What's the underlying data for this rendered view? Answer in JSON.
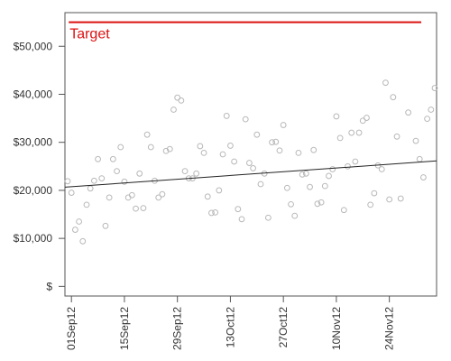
{
  "chart_data": {
    "type": "scatter",
    "title": "",
    "xlabel": "",
    "ylabel": "",
    "x_start": "2012-08-31",
    "x_end": "2012-12-06",
    "ylim": [
      -2000,
      57000
    ],
    "y_ticks": [
      {
        "value": 0,
        "label": "$"
      },
      {
        "value": 10000,
        "label": "$10,000"
      },
      {
        "value": 20000,
        "label": "$20,000"
      },
      {
        "value": 30000,
        "label": "$30,000"
      },
      {
        "value": 40000,
        "label": "$40,000"
      },
      {
        "value": 50000,
        "label": "$50,000"
      }
    ],
    "x_ticks": [
      {
        "date": "2012-09-01",
        "label": "01Sep12"
      },
      {
        "date": "2012-09-15",
        "label": "15Sep12"
      },
      {
        "date": "2012-09-29",
        "label": "29Sep12"
      },
      {
        "date": "2012-10-13",
        "label": "13Oct12"
      },
      {
        "date": "2012-10-27",
        "label": "27Oct12"
      },
      {
        "date": "2012-11-10",
        "label": "10Nov12"
      },
      {
        "date": "2012-11-24",
        "label": "24Nov12"
      }
    ],
    "target": {
      "label": "Target",
      "value": 55000,
      "color": "#dd1111",
      "x_from": "2012-09-01",
      "x_to": "2012-12-01"
    },
    "trend": {
      "from": {
        "date": "2012-08-31",
        "value": 20700
      },
      "to": {
        "date": "2012-12-06",
        "value": 26100
      },
      "color": "#222222"
    },
    "point_color": "#b8b8b8",
    "grid": false,
    "points": [
      {
        "date": "2012-08-31",
        "value": 21900
      },
      {
        "date": "2012-09-01",
        "value": 19500
      },
      {
        "date": "2012-09-02",
        "value": 11800
      },
      {
        "date": "2012-09-03",
        "value": 13500
      },
      {
        "date": "2012-09-04",
        "value": 9400
      },
      {
        "date": "2012-09-05",
        "value": 17000
      },
      {
        "date": "2012-09-06",
        "value": 20400
      },
      {
        "date": "2012-09-07",
        "value": 22000
      },
      {
        "date": "2012-09-08",
        "value": 26500
      },
      {
        "date": "2012-09-09",
        "value": 22500
      },
      {
        "date": "2012-09-10",
        "value": 12600
      },
      {
        "date": "2012-09-11",
        "value": 18500
      },
      {
        "date": "2012-09-12",
        "value": 26500
      },
      {
        "date": "2012-09-13",
        "value": 24000
      },
      {
        "date": "2012-09-14",
        "value": 29000
      },
      {
        "date": "2012-09-15",
        "value": 21800
      },
      {
        "date": "2012-09-16",
        "value": 18500
      },
      {
        "date": "2012-09-17",
        "value": 19000
      },
      {
        "date": "2012-09-18",
        "value": 16200
      },
      {
        "date": "2012-09-19",
        "value": 23500
      },
      {
        "date": "2012-09-20",
        "value": 16300
      },
      {
        "date": "2012-09-21",
        "value": 31600
      },
      {
        "date": "2012-09-22",
        "value": 29000
      },
      {
        "date": "2012-09-23",
        "value": 22000
      },
      {
        "date": "2012-09-24",
        "value": 18500
      },
      {
        "date": "2012-09-25",
        "value": 19200
      },
      {
        "date": "2012-09-26",
        "value": 28200
      },
      {
        "date": "2012-09-27",
        "value": 28600
      },
      {
        "date": "2012-09-28",
        "value": 36800
      },
      {
        "date": "2012-09-29",
        "value": 39300
      },
      {
        "date": "2012-09-30",
        "value": 38700
      },
      {
        "date": "2012-10-01",
        "value": 24000
      },
      {
        "date": "2012-10-02",
        "value": 22500
      },
      {
        "date": "2012-10-03",
        "value": 22500
      },
      {
        "date": "2012-10-04",
        "value": 23500
      },
      {
        "date": "2012-10-05",
        "value": 29200
      },
      {
        "date": "2012-10-06",
        "value": 27800
      },
      {
        "date": "2012-10-07",
        "value": 18700
      },
      {
        "date": "2012-10-08",
        "value": 15300
      },
      {
        "date": "2012-10-09",
        "value": 15400
      },
      {
        "date": "2012-10-10",
        "value": 20000
      },
      {
        "date": "2012-10-11",
        "value": 27500
      },
      {
        "date": "2012-10-12",
        "value": 35500
      },
      {
        "date": "2012-10-13",
        "value": 29300
      },
      {
        "date": "2012-10-14",
        "value": 26000
      },
      {
        "date": "2012-10-15",
        "value": 16100
      },
      {
        "date": "2012-10-16",
        "value": 14000
      },
      {
        "date": "2012-10-17",
        "value": 34800
      },
      {
        "date": "2012-10-18",
        "value": 25700
      },
      {
        "date": "2012-10-19",
        "value": 24600
      },
      {
        "date": "2012-10-20",
        "value": 31600
      },
      {
        "date": "2012-10-21",
        "value": 21300
      },
      {
        "date": "2012-10-22",
        "value": 23500
      },
      {
        "date": "2012-10-23",
        "value": 14300
      },
      {
        "date": "2012-10-24",
        "value": 30000
      },
      {
        "date": "2012-10-25",
        "value": 30100
      },
      {
        "date": "2012-10-26",
        "value": 28300
      },
      {
        "date": "2012-10-27",
        "value": 33600
      },
      {
        "date": "2012-10-28",
        "value": 20500
      },
      {
        "date": "2012-10-29",
        "value": 17100
      },
      {
        "date": "2012-10-30",
        "value": 14700
      },
      {
        "date": "2012-10-31",
        "value": 27800
      },
      {
        "date": "2012-11-01",
        "value": 23300
      },
      {
        "date": "2012-11-02",
        "value": 23500
      },
      {
        "date": "2012-11-03",
        "value": 20700
      },
      {
        "date": "2012-11-04",
        "value": 28400
      },
      {
        "date": "2012-11-05",
        "value": 17200
      },
      {
        "date": "2012-11-06",
        "value": 17500
      },
      {
        "date": "2012-11-07",
        "value": 20900
      },
      {
        "date": "2012-11-08",
        "value": 23000
      },
      {
        "date": "2012-11-09",
        "value": 24400
      },
      {
        "date": "2012-11-10",
        "value": 35400
      },
      {
        "date": "2012-11-11",
        "value": 30900
      },
      {
        "date": "2012-11-12",
        "value": 15900
      },
      {
        "date": "2012-11-13",
        "value": 25000
      },
      {
        "date": "2012-11-14",
        "value": 32000
      },
      {
        "date": "2012-11-15",
        "value": 26000
      },
      {
        "date": "2012-11-16",
        "value": 32000
      },
      {
        "date": "2012-11-17",
        "value": 34500
      },
      {
        "date": "2012-11-18",
        "value": 35100
      },
      {
        "date": "2012-11-19",
        "value": 17000
      },
      {
        "date": "2012-11-20",
        "value": 19400
      },
      {
        "date": "2012-11-21",
        "value": 25200
      },
      {
        "date": "2012-11-22",
        "value": 24400
      },
      {
        "date": "2012-11-23",
        "value": 42400
      },
      {
        "date": "2012-11-24",
        "value": 18100
      },
      {
        "date": "2012-11-25",
        "value": 39400
      },
      {
        "date": "2012-11-26",
        "value": 31200
      },
      {
        "date": "2012-11-27",
        "value": 18300
      },
      {
        "date": "2012-11-29",
        "value": 36200
      },
      {
        "date": "2012-12-01",
        "value": 30300
      },
      {
        "date": "2012-12-02",
        "value": 26500
      },
      {
        "date": "2012-12-03",
        "value": 22700
      },
      {
        "date": "2012-12-04",
        "value": 34900
      },
      {
        "date": "2012-12-05",
        "value": 36800
      },
      {
        "date": "2012-12-06",
        "value": 41300
      }
    ]
  }
}
